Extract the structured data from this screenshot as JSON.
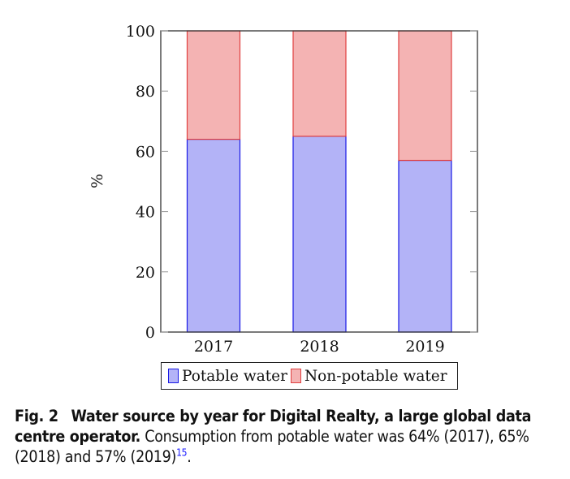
{
  "chart_data": {
    "type": "bar",
    "stacked": true,
    "categories": [
      "2017",
      "2018",
      "2019"
    ],
    "series": [
      {
        "name": "Potable water",
        "values": [
          64,
          65,
          57
        ],
        "fill": "#b3b3f7",
        "stroke": "#1a1ae6"
      },
      {
        "name": "Non-potable water",
        "values": [
          36,
          35,
          43
        ],
        "fill": "#f4b3b3",
        "stroke": "#e04040"
      }
    ],
    "title": "",
    "xlabel": "",
    "ylabel": "%",
    "ylim": [
      0,
      100
    ],
    "yticks": [
      0,
      20,
      40,
      60,
      80,
      100
    ],
    "grid": false,
    "legend_position": "bottom"
  },
  "caption": {
    "label": "Fig. 2",
    "bold_title": "Water source by year for Digital Realty, a large global data centre operator.",
    "text": " Consumption from potable water was 64% (2017), 65% (2018) and 57% (2019)",
    "ref": "15",
    "end": "."
  }
}
